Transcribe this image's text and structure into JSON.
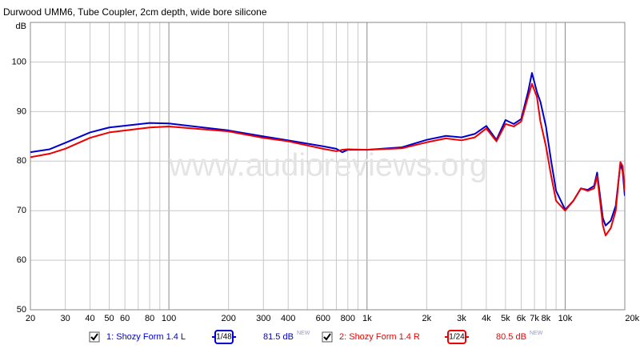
{
  "chart_data": {
    "type": "line",
    "title": "Durwood UMM6, Tube Coupler, 2cm depth, wide bore silicone",
    "y_label": "dB",
    "watermark": "www.audioreviews.org",
    "x_scale": "log",
    "grid": true,
    "xlim": [
      20,
      20000
    ],
    "ylim": [
      50,
      108
    ],
    "yticks": [
      50,
      60,
      70,
      80,
      90,
      100
    ],
    "xticks": [
      20,
      30,
      40,
      50,
      60,
      80,
      100,
      200,
      300,
      400,
      600,
      800,
      {
        "value": 1000,
        "label": "1k"
      },
      {
        "value": 2000,
        "label": "2k"
      },
      {
        "value": 3000,
        "label": "3k"
      },
      {
        "value": 4000,
        "label": "4k"
      },
      {
        "value": 5000,
        "label": "5k"
      },
      {
        "value": 6000,
        "label": "6k"
      },
      {
        "value": 7000,
        "label": "7k"
      },
      {
        "value": 8000,
        "label": "8k"
      },
      {
        "value": 10000,
        "label": "10k"
      },
      {
        "value": 20000,
        "label": "20kHz"
      }
    ],
    "x_minor_ticks": [
      70,
      90,
      500,
      700,
      900,
      9000
    ],
    "x": [
      20,
      25,
      30,
      40,
      50,
      80,
      100,
      200,
      300,
      400,
      600,
      700,
      750,
      800,
      1000,
      1500,
      2000,
      2500,
      3000,
      3500,
      4000,
      4500,
      5000,
      5500,
      6000,
      6500,
      6800,
      7200,
      7500,
      8000,
      8500,
      9000,
      10000,
      11000,
      12000,
      13000,
      14000,
      14500,
      15000,
      15500,
      16000,
      17000,
      18000,
      19000,
      19500,
      20000
    ],
    "series": [
      {
        "name": "1: Shozy Form 1.4 L",
        "color": "#0000cc",
        "smoothing": "1/48",
        "level": "81.5 dB",
        "level_badge": "NEW",
        "values": [
          81.8,
          82.4,
          83.7,
          85.8,
          86.8,
          87.7,
          87.6,
          86.2,
          85,
          84.2,
          83,
          82.5,
          81.8,
          82.3,
          82.3,
          82.8,
          84.3,
          85.1,
          84.8,
          85.5,
          87.1,
          84.3,
          88.3,
          87.5,
          88.5,
          94,
          97.8,
          94,
          92,
          87,
          80,
          74,
          70.2,
          72,
          74.5,
          74.2,
          75,
          77.7,
          73,
          68.5,
          67,
          68,
          71,
          79.5,
          78,
          73
        ]
      },
      {
        "name": "2: Shozy Form 1.4 R",
        "color": "#ee0000",
        "smoothing": "1/24",
        "level": "80.5 dB",
        "level_badge": "NEW",
        "values": [
          80.8,
          81.5,
          82.5,
          84.7,
          85.8,
          86.8,
          87,
          86,
          84.7,
          84,
          82.5,
          82,
          82.3,
          82.4,
          82.3,
          82.6,
          83.8,
          84.6,
          84.2,
          84.8,
          86.6,
          84,
          87.5,
          87,
          88,
          93,
          95.6,
          93,
          88,
          83,
          77,
          72,
          70,
          72,
          74.5,
          74,
          74.5,
          77,
          72,
          67,
          65,
          66.5,
          70,
          79.8,
          79,
          74
        ]
      }
    ]
  }
}
